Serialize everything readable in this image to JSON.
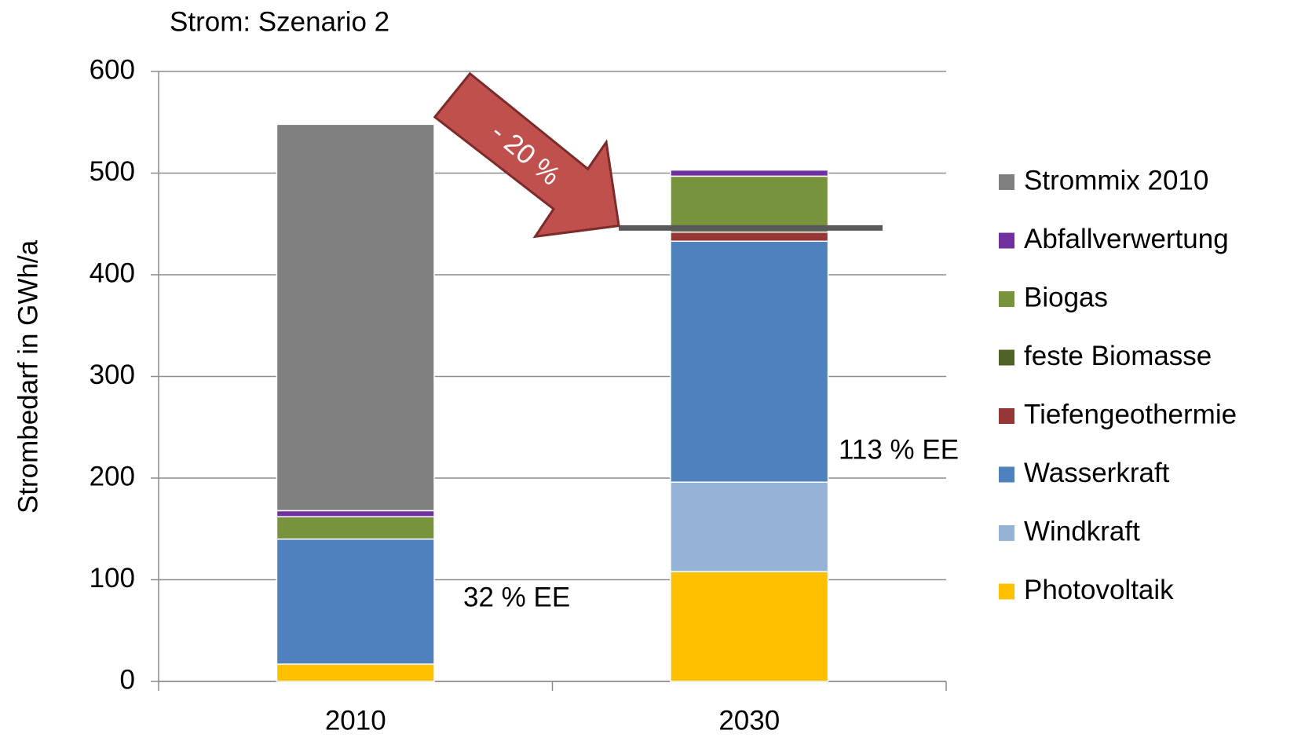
{
  "chart_data": {
    "type": "stacked_bar",
    "title": "Strom: Szenario 2",
    "y_label": "Strombedarf in GWh/a",
    "categories": [
      "2010",
      "2030"
    ],
    "series": [
      {
        "name": "Photovoltaik",
        "color": "#ffc000",
        "values": [
          17,
          108
        ]
      },
      {
        "name": "Windkraft",
        "color": "#95b3d7",
        "values": [
          0,
          88
        ]
      },
      {
        "name": "Wasserkraft",
        "color": "#4f81bd",
        "values": [
          123,
          237
        ]
      },
      {
        "name": "Tiefengeothermie",
        "color": "#953735",
        "values": [
          0,
          9
        ]
      },
      {
        "name": "feste Biomasse",
        "color": "#4f6228",
        "values": [
          0,
          6
        ]
      },
      {
        "name": "Biogas",
        "color": "#77933c",
        "values": [
          22,
          49
        ]
      },
      {
        "name": "Abfallverwertung",
        "color": "#7030a0",
        "values": [
          6,
          6
        ]
      },
      {
        "name": "Strommix 2010",
        "color": "#808080",
        "values": [
          380,
          0
        ]
      }
    ],
    "ylim": [
      0,
      600
    ],
    "yticks": [
      0,
      100,
      200,
      300,
      400,
      500,
      600
    ],
    "grid": true,
    "legend": "right",
    "reference_line": 446,
    "annotations": [
      "32 % EE",
      "113 % EE",
      "- 20 %"
    ]
  }
}
